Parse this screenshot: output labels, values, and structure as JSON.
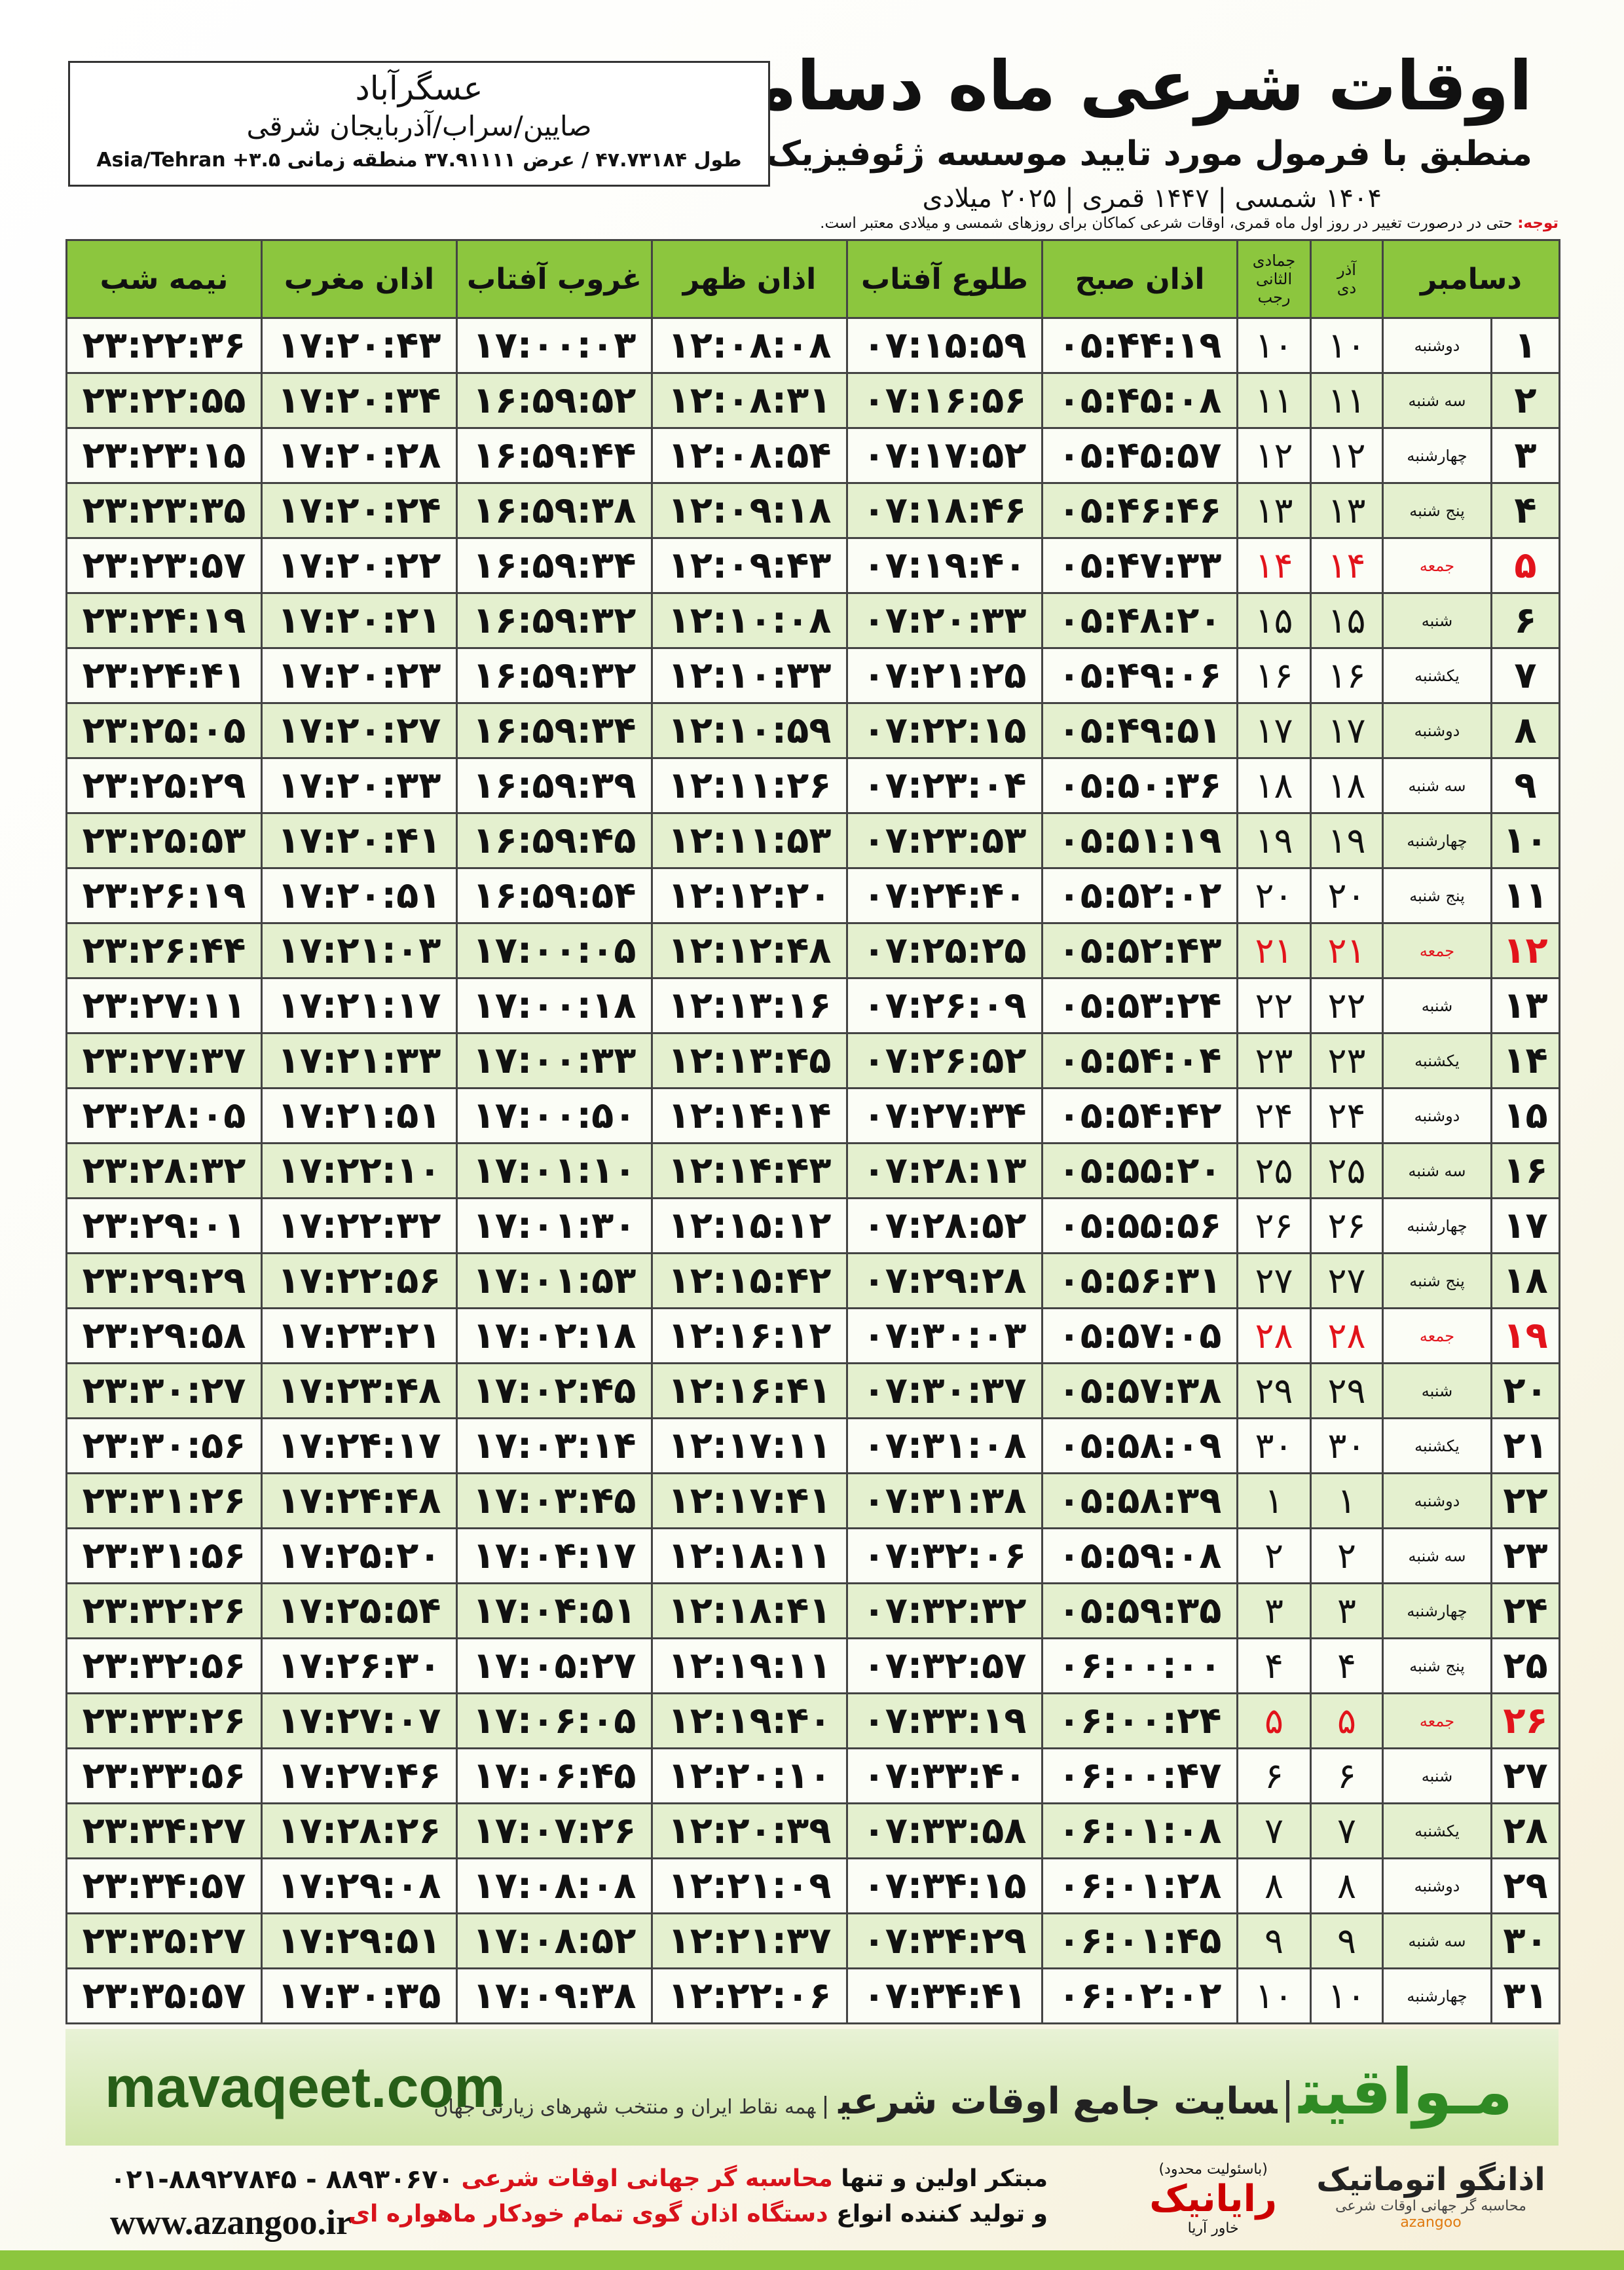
{
  "header": {
    "title": "اوقات شرعی ماه دسامبر",
    "subtitle": "منطبق با فرمول مورد تایید موسسه ژئوفیزیک دانشگاه تهران",
    "dates": "۱۴۰۴ شمسی | ۱۴۴۷ قمری | ۲۰۲۵ میلادی"
  },
  "location": {
    "city": "عسگرآباد",
    "region": "صایین/سراب/آذربایجان شرقی",
    "coords": "طول ۴۷.۷۳۱۸۴ / عرض ۳۷.۹۱۱۱۱ منطقه زمانی ۳.۵+ Asia/Tehran"
  },
  "note": {
    "label": "توجه:",
    "text": "حتی در درصورت تغییر در روز اول ماه قمری، اوقات شرعی کماکان برای روزهای شمسی و میلادی معتبر است."
  },
  "table": {
    "columns": {
      "month": "دسامبر",
      "shamsi_top": "آذر",
      "shamsi_bottom": "دی",
      "hijri_top": "جمادی الثانی",
      "hijri_bottom": "رجب",
      "times": [
        "اذان صبح",
        "طلوع آفتاب",
        "اذان ظهر",
        "غروب آفتاب",
        "اذان مغرب",
        "نیمه شب"
      ]
    },
    "rows": [
      [
        "۱",
        "دوشنبه",
        "۱۰",
        "۱۰",
        "۰۵:۴۴:۱۹",
        "۰۷:۱۵:۵۹",
        "۱۲:۰۸:۰۸",
        "۱۷:۰۰:۰۳",
        "۱۷:۲۰:۴۳",
        "۲۳:۲۲:۳۶"
      ],
      [
        "۲",
        "سه شنبه",
        "۱۱",
        "۱۱",
        "۰۵:۴۵:۰۸",
        "۰۷:۱۶:۵۶",
        "۱۲:۰۸:۳۱",
        "۱۶:۵۹:۵۲",
        "۱۷:۲۰:۳۴",
        "۲۳:۲۲:۵۵"
      ],
      [
        "۳",
        "چهارشنبه",
        "۱۲",
        "۱۲",
        "۰۵:۴۵:۵۷",
        "۰۷:۱۷:۵۲",
        "۱۲:۰۸:۵۴",
        "۱۶:۵۹:۴۴",
        "۱۷:۲۰:۲۸",
        "۲۳:۲۳:۱۵"
      ],
      [
        "۴",
        "پنج شنبه",
        "۱۳",
        "۱۳",
        "۰۵:۴۶:۴۶",
        "۰۷:۱۸:۴۶",
        "۱۲:۰۹:۱۸",
        "۱۶:۵۹:۳۸",
        "۱۷:۲۰:۲۴",
        "۲۳:۲۳:۳۵"
      ],
      [
        "۵",
        "جمعه",
        "۱۴",
        "۱۴",
        "۰۵:۴۷:۳۳",
        "۰۷:۱۹:۴۰",
        "۱۲:۰۹:۴۳",
        "۱۶:۵۹:۳۴",
        "۱۷:۲۰:۲۲",
        "۲۳:۲۳:۵۷"
      ],
      [
        "۶",
        "شنبه",
        "۱۵",
        "۱۵",
        "۰۵:۴۸:۲۰",
        "۰۷:۲۰:۳۳",
        "۱۲:۱۰:۰۸",
        "۱۶:۵۹:۳۲",
        "۱۷:۲۰:۲۱",
        "۲۳:۲۴:۱۹"
      ],
      [
        "۷",
        "یکشنبه",
        "۱۶",
        "۱۶",
        "۰۵:۴۹:۰۶",
        "۰۷:۲۱:۲۵",
        "۱۲:۱۰:۳۳",
        "۱۶:۵۹:۳۲",
        "۱۷:۲۰:۲۳",
        "۲۳:۲۴:۴۱"
      ],
      [
        "۸",
        "دوشنبه",
        "۱۷",
        "۱۷",
        "۰۵:۴۹:۵۱",
        "۰۷:۲۲:۱۵",
        "۱۲:۱۰:۵۹",
        "۱۶:۵۹:۳۴",
        "۱۷:۲۰:۲۷",
        "۲۳:۲۵:۰۵"
      ],
      [
        "۹",
        "سه شنبه",
        "۱۸",
        "۱۸",
        "۰۵:۵۰:۳۶",
        "۰۷:۲۳:۰۴",
        "۱۲:۱۱:۲۶",
        "۱۶:۵۹:۳۹",
        "۱۷:۲۰:۳۳",
        "۲۳:۲۵:۲۹"
      ],
      [
        "۱۰",
        "چهارشنبه",
        "۱۹",
        "۱۹",
        "۰۵:۵۱:۱۹",
        "۰۷:۲۳:۵۳",
        "۱۲:۱۱:۵۳",
        "۱۶:۵۹:۴۵",
        "۱۷:۲۰:۴۱",
        "۲۳:۲۵:۵۳"
      ],
      [
        "۱۱",
        "پنج شنبه",
        "۲۰",
        "۲۰",
        "۰۵:۵۲:۰۲",
        "۰۷:۲۴:۴۰",
        "۱۲:۱۲:۲۰",
        "۱۶:۵۹:۵۴",
        "۱۷:۲۰:۵۱",
        "۲۳:۲۶:۱۹"
      ],
      [
        "۱۲",
        "جمعه",
        "۲۱",
        "۲۱",
        "۰۵:۵۲:۴۳",
        "۰۷:۲۵:۲۵",
        "۱۲:۱۲:۴۸",
        "۱۷:۰۰:۰۵",
        "۱۷:۲۱:۰۳",
        "۲۳:۲۶:۴۴"
      ],
      [
        "۱۳",
        "شنبه",
        "۲۲",
        "۲۲",
        "۰۵:۵۳:۲۴",
        "۰۷:۲۶:۰۹",
        "۱۲:۱۳:۱۶",
        "۱۷:۰۰:۱۸",
        "۱۷:۲۱:۱۷",
        "۲۳:۲۷:۱۱"
      ],
      [
        "۱۴",
        "یکشنبه",
        "۲۳",
        "۲۳",
        "۰۵:۵۴:۰۴",
        "۰۷:۲۶:۵۲",
        "۱۲:۱۳:۴۵",
        "۱۷:۰۰:۳۳",
        "۱۷:۲۱:۳۳",
        "۲۳:۲۷:۳۷"
      ],
      [
        "۱۵",
        "دوشنبه",
        "۲۴",
        "۲۴",
        "۰۵:۵۴:۴۲",
        "۰۷:۲۷:۳۴",
        "۱۲:۱۴:۱۴",
        "۱۷:۰۰:۵۰",
        "۱۷:۲۱:۵۱",
        "۲۳:۲۸:۰۵"
      ],
      [
        "۱۶",
        "سه شنبه",
        "۲۵",
        "۲۵",
        "۰۵:۵۵:۲۰",
        "۰۷:۲۸:۱۳",
        "۱۲:۱۴:۴۳",
        "۱۷:۰۱:۱۰",
        "۱۷:۲۲:۱۰",
        "۲۳:۲۸:۳۲"
      ],
      [
        "۱۷",
        "چهارشنبه",
        "۲۶",
        "۲۶",
        "۰۵:۵۵:۵۶",
        "۰۷:۲۸:۵۲",
        "۱۲:۱۵:۱۲",
        "۱۷:۰۱:۳۰",
        "۱۷:۲۲:۳۲",
        "۲۳:۲۹:۰۱"
      ],
      [
        "۱۸",
        "پنج شنبه",
        "۲۷",
        "۲۷",
        "۰۵:۵۶:۳۱",
        "۰۷:۲۹:۲۸",
        "۱۲:۱۵:۴۲",
        "۱۷:۰۱:۵۳",
        "۱۷:۲۲:۵۶",
        "۲۳:۲۹:۲۹"
      ],
      [
        "۱۹",
        "جمعه",
        "۲۸",
        "۲۸",
        "۰۵:۵۷:۰۵",
        "۰۷:۳۰:۰۳",
        "۱۲:۱۶:۱۲",
        "۱۷:۰۲:۱۸",
        "۱۷:۲۳:۲۱",
        "۲۳:۲۹:۵۸"
      ],
      [
        "۲۰",
        "شنبه",
        "۲۹",
        "۲۹",
        "۰۵:۵۷:۳۸",
        "۰۷:۳۰:۳۷",
        "۱۲:۱۶:۴۱",
        "۱۷:۰۲:۴۵",
        "۱۷:۲۳:۴۸",
        "۲۳:۳۰:۲۷"
      ],
      [
        "۲۱",
        "یکشنبه",
        "۳۰",
        "۳۰",
        "۰۵:۵۸:۰۹",
        "۰۷:۳۱:۰۸",
        "۱۲:۱۷:۱۱",
        "۱۷:۰۳:۱۴",
        "۱۷:۲۴:۱۷",
        "۲۳:۳۰:۵۶"
      ],
      [
        "۲۲",
        "دوشنبه",
        "۱",
        "۱",
        "۰۵:۵۸:۳۹",
        "۰۷:۳۱:۳۸",
        "۱۲:۱۷:۴۱",
        "۱۷:۰۳:۴۵",
        "۱۷:۲۴:۴۸",
        "۲۳:۳۱:۲۶"
      ],
      [
        "۲۳",
        "سه شنبه",
        "۲",
        "۲",
        "۰۵:۵۹:۰۸",
        "۰۷:۳۲:۰۶",
        "۱۲:۱۸:۱۱",
        "۱۷:۰۴:۱۷",
        "۱۷:۲۵:۲۰",
        "۲۳:۳۱:۵۶"
      ],
      [
        "۲۴",
        "چهارشنبه",
        "۳",
        "۳",
        "۰۵:۵۹:۳۵",
        "۰۷:۳۲:۳۲",
        "۱۲:۱۸:۴۱",
        "۱۷:۰۴:۵۱",
        "۱۷:۲۵:۵۴",
        "۲۳:۳۲:۲۶"
      ],
      [
        "۲۵",
        "پنج شنبه",
        "۴",
        "۴",
        "۰۶:۰۰:۰۰",
        "۰۷:۳۲:۵۷",
        "۱۲:۱۹:۱۱",
        "۱۷:۰۵:۲۷",
        "۱۷:۲۶:۳۰",
        "۲۳:۳۲:۵۶"
      ],
      [
        "۲۶",
        "جمعه",
        "۵",
        "۵",
        "۰۶:۰۰:۲۴",
        "۰۷:۳۳:۱۹",
        "۱۲:۱۹:۴۰",
        "۱۷:۰۶:۰۵",
        "۱۷:۲۷:۰۷",
        "۲۳:۳۳:۲۶"
      ],
      [
        "۲۷",
        "شنبه",
        "۶",
        "۶",
        "۰۶:۰۰:۴۷",
        "۰۷:۳۳:۴۰",
        "۱۲:۲۰:۱۰",
        "۱۷:۰۶:۴۵",
        "۱۷:۲۷:۴۶",
        "۲۳:۳۳:۵۶"
      ],
      [
        "۲۸",
        "یکشنبه",
        "۷",
        "۷",
        "۰۶:۰۱:۰۸",
        "۰۷:۳۳:۵۸",
        "۱۲:۲۰:۳۹",
        "۱۷:۰۷:۲۶",
        "۱۷:۲۸:۲۶",
        "۲۳:۳۴:۲۷"
      ],
      [
        "۲۹",
        "دوشنبه",
        "۸",
        "۸",
        "۰۶:۰۱:۲۸",
        "۰۷:۳۴:۱۵",
        "۱۲:۲۱:۰۹",
        "۱۷:۰۸:۰۸",
        "۱۷:۲۹:۰۸",
        "۲۳:۳۴:۵۷"
      ],
      [
        "۳۰",
        "سه شنبه",
        "۹",
        "۹",
        "۰۶:۰۱:۴۵",
        "۰۷:۳۴:۲۹",
        "۱۲:۲۱:۳۷",
        "۱۷:۰۸:۵۲",
        "۱۷:۲۹:۵۱",
        "۲۳:۳۵:۲۷"
      ],
      [
        "۳۱",
        "چهارشنبه",
        "۱۰",
        "۱۰",
        "۰۶:۰۲:۰۲",
        "۰۷:۳۴:۴۱",
        "۱۲:۲۲:۰۶",
        "۱۷:۰۹:۳۸",
        "۱۷:۳۰:۳۵",
        "۲۳:۳۵:۵۷"
      ]
    ]
  },
  "banner": {
    "site": "mavaqeet.com",
    "brand": "مـواقیت",
    "tagline": "سایت جامع اوقات شرعی",
    "scope": "همه نقاط ایران و منتخب شهرهای زیارتی جهان"
  },
  "footer": {
    "phone": "۰۲۱-۸۸۹۲۷۸۴۵ - ۸۸۹۳۰۶۷۰",
    "url": "www.azangoo.ir",
    "line1_a": "مبتکر اولین و تنها",
    "line1_b": "محاسبه گر جهانی اوقات شرعی",
    "line2_a": "و تولید کننده انواع",
    "line2_b": "دستگاه اذان گوی تمام خودکار ماهواره ای",
    "logo1": "رایانیک",
    "logo1_sub": "خاور آریا",
    "logo1_note": "(باسئولیت محدود)",
    "logo2": "اذانگو اتوماتیک",
    "logo2_sub": "محاسبه گر جهانی اوقات شرعی",
    "logo2_en": "azangoo"
  }
}
